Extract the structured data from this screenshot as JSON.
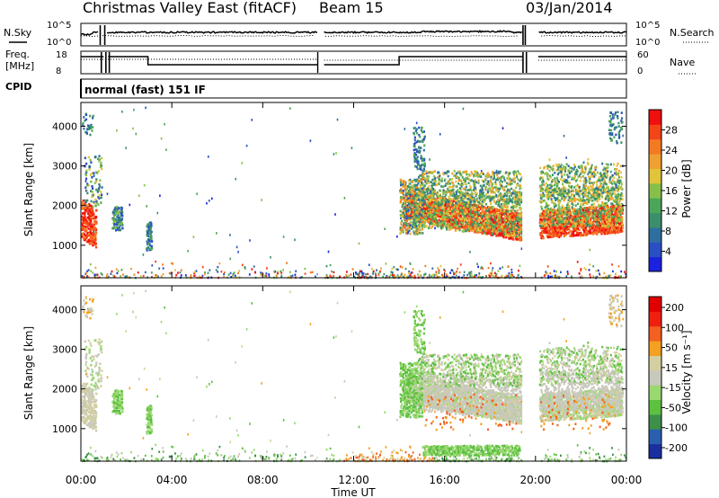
{
  "header": {
    "title": "Christmas Valley East (fitACF)",
    "beam": "Beam 15",
    "date": "03/Jan/2014"
  },
  "params": {
    "nsky_label": "N.Sky",
    "nsearch_label": "N.Search",
    "freq_label_1": "Freq.",
    "freq_label_2": "[MHz]",
    "nave_label": "Nave",
    "cpid_label": "CPID",
    "cpid_value": "normal (fast) 151 IF",
    "noise_ticks": [
      "10^5",
      "10^0"
    ],
    "noise_right_ticks": [
      "10^5",
      "10^0"
    ],
    "freq_ticks": [
      "18",
      "8"
    ],
    "nave_ticks": [
      "60",
      "0"
    ]
  },
  "colors": {
    "power": [
      "#1a22e0",
      "#2a4fc2",
      "#2f6fa0",
      "#3c8f6b",
      "#4ca65a",
      "#86c04a",
      "#e0c43a",
      "#f0a030",
      "#f47a22",
      "#f44518",
      "#ef1010"
    ],
    "velocity": [
      "#1a2fa0",
      "#2a5fb0",
      "#3d8f4a",
      "#5cc040",
      "#9ad870",
      "#c8c8bc",
      "#d4cfa0",
      "#f4a020",
      "#f46020",
      "#f02010",
      "#e00000"
    ]
  },
  "chart_data": [
    {
      "type": "heatmap",
      "name": "power-panel",
      "ylabel": "Slant Range [km]",
      "colorbar_label": "Power [dB]",
      "y_ticks": [
        1000,
        2000,
        3000,
        4000
      ],
      "x_ticks": [
        "00:00",
        "04:00",
        "08:00",
        "12:00",
        "16:00",
        "20:00",
        "00:00"
      ],
      "xlim_hours": [
        0,
        24
      ],
      "ylim_km": [
        180,
        4600
      ],
      "colorbar_ticks": [
        "4",
        "8",
        "12",
        "16",
        "20",
        "24",
        "28"
      ]
    },
    {
      "type": "heatmap",
      "name": "velocity-panel",
      "ylabel": "Slant Range [km]",
      "xlabel": "Time UT",
      "colorbar_label": "Velocity [m s⁻¹]",
      "y_ticks": [
        1000,
        2000,
        3000,
        4000
      ],
      "x_ticks": [
        "00:00",
        "04:00",
        "08:00",
        "12:00",
        "16:00",
        "20:00",
        "00:00"
      ],
      "xlim_hours": [
        0,
        24
      ],
      "ylim_km": [
        180,
        4600
      ],
      "colorbar_ticks": [
        "200",
        "100",
        "50",
        "15",
        "-15",
        "-50",
        "-100",
        "-200"
      ]
    }
  ]
}
